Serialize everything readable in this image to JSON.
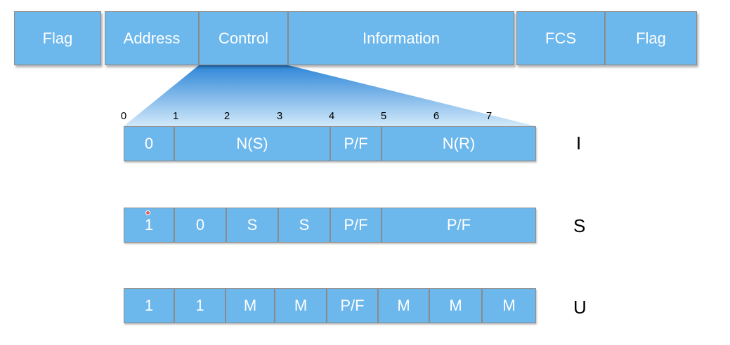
{
  "frame": {
    "fields": [
      "Flag",
      "Address",
      "Control",
      "Information",
      "FCS",
      "Flag"
    ]
  },
  "bit_numbers": [
    "0",
    "1",
    "2",
    "3",
    "4",
    "5",
    "6",
    "7"
  ],
  "rows": {
    "I": {
      "label": "I",
      "cells": [
        "0",
        "N(S)",
        "P/F",
        "N(R)"
      ]
    },
    "S": {
      "label": "S",
      "cells": [
        "1",
        "0",
        "S",
        "S",
        "P/F",
        "P/F"
      ]
    },
    "U": {
      "label": "U",
      "cells": [
        "1",
        "1",
        "M",
        "M",
        "P/F",
        "M",
        "M",
        "M"
      ]
    }
  },
  "colors": {
    "cell_fill": "#6cb7ec",
    "cell_border": "#8c8c8c",
    "fan_top": "#2e86d8",
    "fan_bottom": "#c9e4f8"
  }
}
